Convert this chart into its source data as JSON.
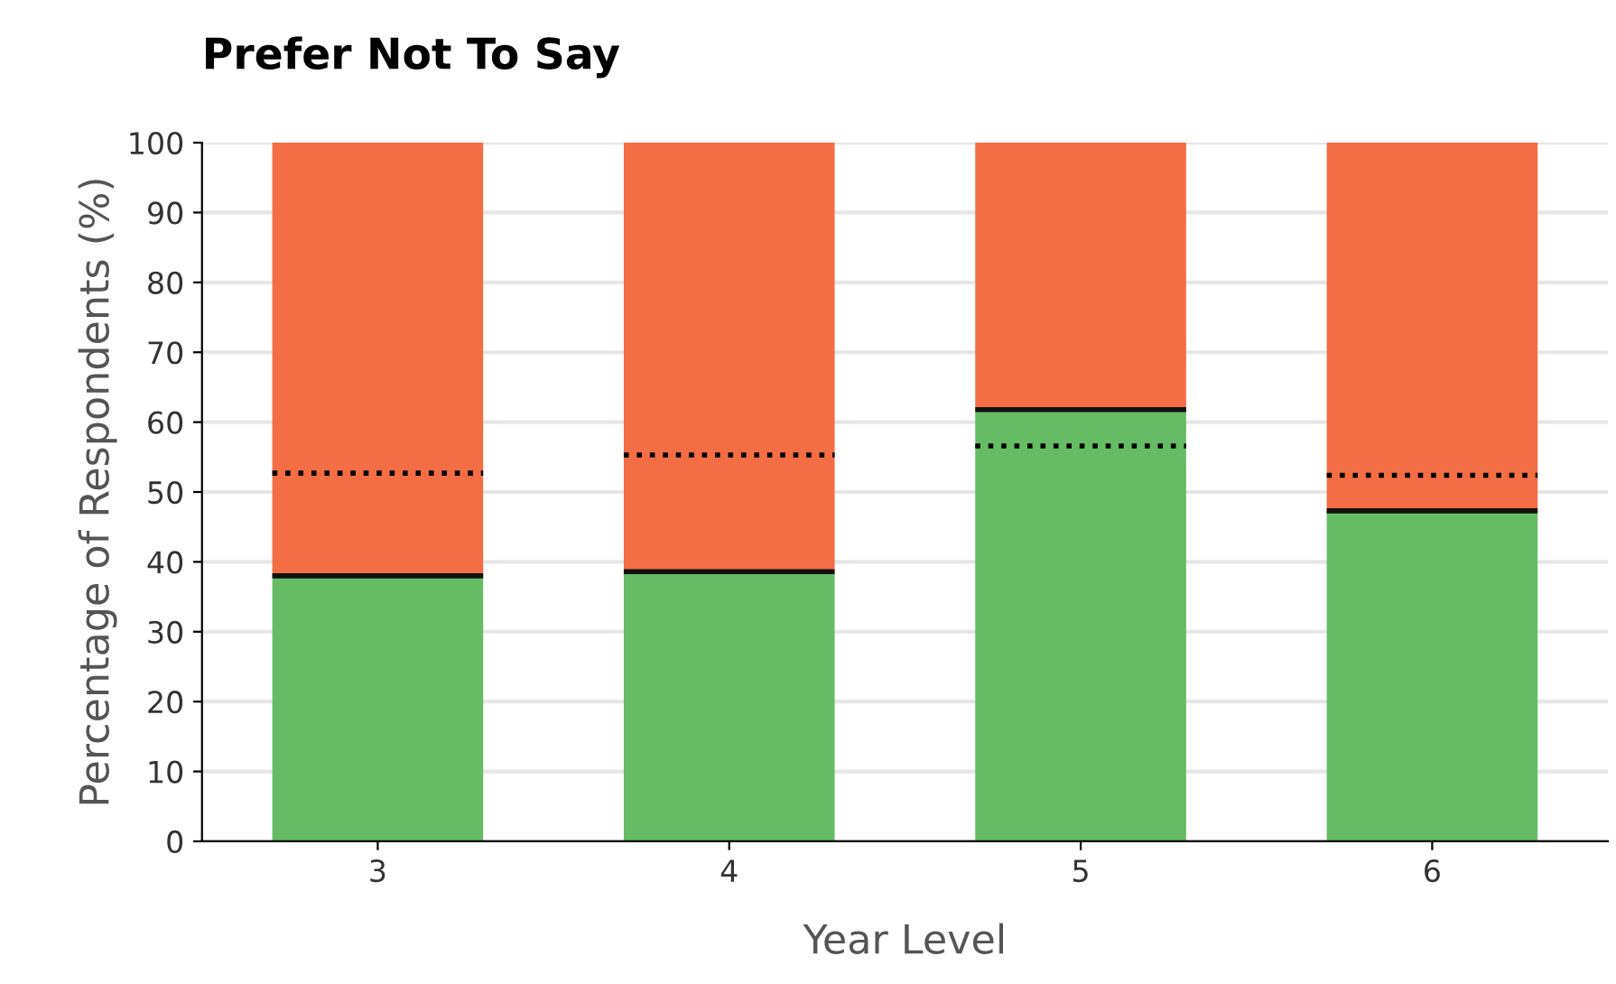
{
  "chart_data": {
    "type": "bar",
    "title": "Prefer Not To Say",
    "xlabel": "Year Level",
    "ylabel": "Percentage of Respondents (%)",
    "categories": [
      "3",
      "4",
      "5",
      "6"
    ],
    "stacked": true,
    "series": [
      {
        "color": "#66bc64",
        "values": [
          38.0,
          38.6,
          61.8,
          47.3
        ]
      },
      {
        "color": "#f36d45",
        "values": [
          62.0,
          61.4,
          38.2,
          52.7
        ]
      }
    ],
    "ref_lines": [
      {
        "axis": "y",
        "value": 52.7,
        "color": "#000000",
        "line_style": "dotted"
      },
      {
        "axis": "y",
        "value": 55.3,
        "color": "#000000",
        "line_style": "dotted"
      },
      {
        "axis": "y",
        "value": 56.6,
        "color": "#000000",
        "line_style": "dotted"
      },
      {
        "axis": "y",
        "value": 52.4,
        "color": "#000000",
        "line_style": "dotted"
      }
    ],
    "ylim": [
      0,
      100
    ],
    "yticks": [
      0,
      10,
      20,
      30,
      40,
      50,
      60,
      70,
      80,
      90,
      100
    ],
    "grid": "y",
    "legend": false
  }
}
